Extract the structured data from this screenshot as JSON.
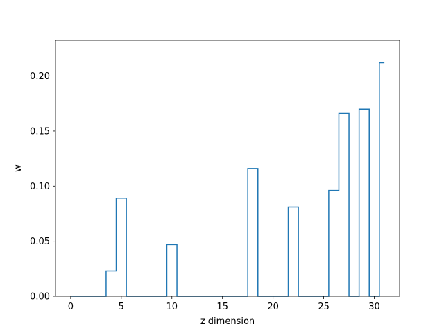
{
  "chart_data": {
    "type": "line",
    "drawstyle": "steps-mid",
    "title": "",
    "xlabel": "z dimension",
    "ylabel": "w",
    "xlim": [
      -1.5,
      32.5
    ],
    "ylim": [
      0,
      0.2325
    ],
    "xticks": [
      0,
      5,
      10,
      15,
      20,
      25,
      30
    ],
    "yticks": [
      0.0,
      0.05,
      0.1,
      0.15,
      0.2
    ],
    "ytick_labels": [
      "0.00",
      "0.05",
      "0.10",
      "0.15",
      "0.20"
    ],
    "grid": false,
    "series": [
      {
        "color": "#1f77b4",
        "x": [
          0,
          1,
          2,
          3,
          4,
          5,
          6,
          7,
          8,
          9,
          10,
          11,
          12,
          13,
          14,
          15,
          16,
          17,
          18,
          19,
          20,
          21,
          22,
          23,
          24,
          25,
          26,
          27,
          28,
          29,
          30,
          31
        ],
        "y": [
          0,
          0,
          0,
          0,
          0.023,
          0.089,
          0,
          0,
          0,
          0,
          0.047,
          0,
          0,
          0,
          0,
          0,
          0,
          0,
          0.116,
          0,
          0,
          0,
          0.081,
          0,
          0,
          0,
          0.096,
          0.166,
          0,
          0.17,
          0,
          0.212
        ]
      }
    ]
  }
}
